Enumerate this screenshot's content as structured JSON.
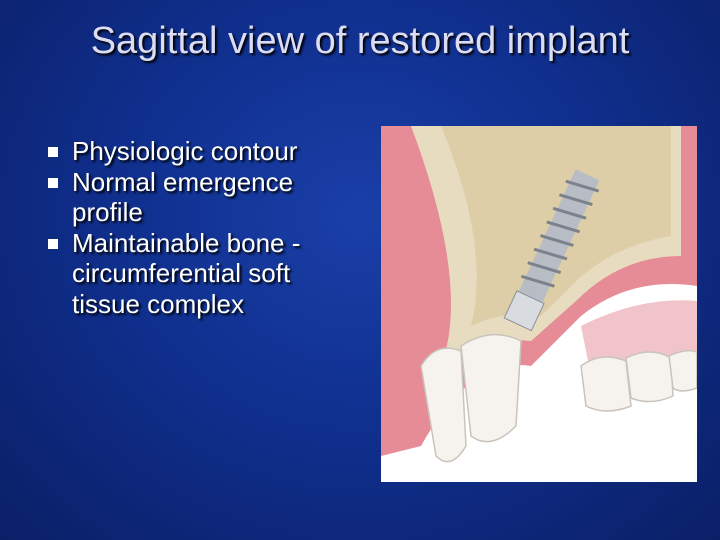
{
  "title": "Sagittal view of restored implant",
  "bullets": [
    "Physiologic contour",
    "Normal emergence profile",
    "Maintainable bone -circumferential soft tissue complex"
  ]
}
